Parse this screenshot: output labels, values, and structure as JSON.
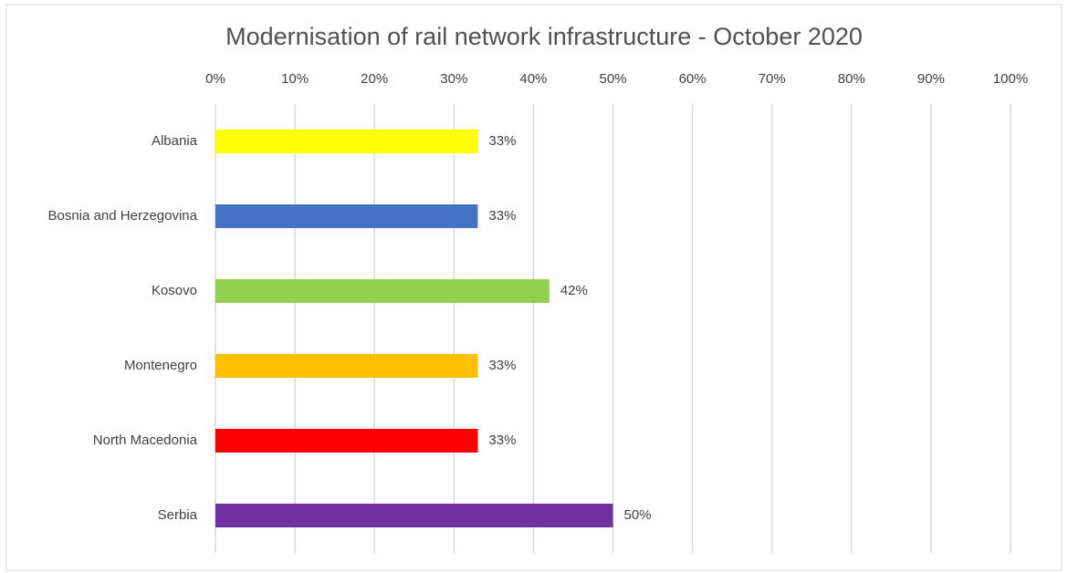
{
  "chart_data": {
    "type": "bar",
    "orientation": "horizontal",
    "title": "Modernisation of rail network infrastructure - October 2020",
    "categories": [
      "Albania",
      "Bosnia and Herzegovina",
      "Kosovo",
      "Montenegro",
      "North Macedonia",
      "Serbia"
    ],
    "values": [
      33,
      33,
      42,
      33,
      33,
      50
    ],
    "value_labels": [
      "33%",
      "33%",
      "42%",
      "33%",
      "33%",
      "50%"
    ],
    "colors": [
      "#ffff00",
      "#4472c4",
      "#92d050",
      "#ffc000",
      "#ff0000",
      "#7030a0"
    ],
    "xlim": [
      0,
      100
    ],
    "xticks": [
      {
        "value": 0,
        "label": "0%"
      },
      {
        "value": 10,
        "label": "10%"
      },
      {
        "value": 20,
        "label": "20%"
      },
      {
        "value": 30,
        "label": "30%"
      },
      {
        "value": 40,
        "label": "40%"
      },
      {
        "value": 50,
        "label": "50%"
      },
      {
        "value": 60,
        "label": "60%"
      },
      {
        "value": 70,
        "label": "70%"
      },
      {
        "value": 80,
        "label": "80%"
      },
      {
        "value": 90,
        "label": "90%"
      },
      {
        "value": 100,
        "label": "100%"
      }
    ],
    "grid": true
  }
}
